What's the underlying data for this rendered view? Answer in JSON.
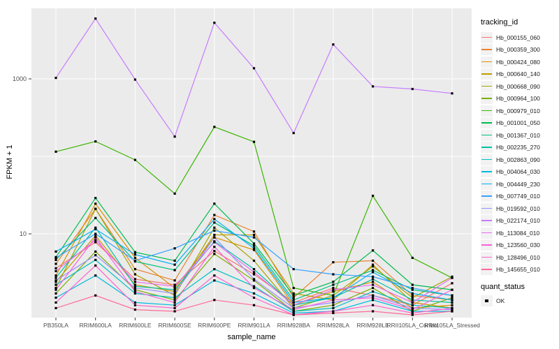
{
  "figure": {
    "background": "#FFFFFF",
    "panel_background": "#EBEBEB",
    "grid_color": "#FFFFFF",
    "tick_color": "#333333",
    "tick_text_color": "#4D4D4D",
    "axis_title_color": "#000000"
  },
  "chart_data": {
    "type": "line",
    "title": "",
    "xlabel": "sample_name",
    "ylabel": "FPKM + 1",
    "y_scale": "log10",
    "ylim": [
      0.85,
      8000
    ],
    "y_tick_labels": [
      "10",
      "1000"
    ],
    "y_tick_values": [
      10,
      1000
    ],
    "y_gridlines": [
      10,
      100,
      1000
    ],
    "grid": true,
    "legend_position": "right",
    "legend_title": "tracking_id",
    "point_marker": "black-dot",
    "quant_legend": {
      "title": "quant_status",
      "items": [
        {
          "label": "OK",
          "marker": "black-square"
        }
      ]
    },
    "categories": [
      "PB350LA",
      "RRIM600LA",
      "RRIM600LE",
      "RRIM600SE",
      "RRIM600PE",
      "RRIM901LA",
      "RRIM928BA",
      "RRIM928LA",
      "RRIM928LE",
      "RRII105LA_Control",
      "RRII105LA_Stressed"
    ],
    "series": [
      {
        "name": "Hb_000155_060",
        "color": "#F8766D",
        "values": [
          3.6,
          7.8,
          2.6,
          2.2,
          6.0,
          3.0,
          1.3,
          2.0,
          1.6,
          1.2,
          2.3
        ]
      },
      {
        "name": "Hb_000359_300",
        "color": "#EA8331",
        "values": [
          4.1,
          21,
          3.5,
          2.5,
          17.5,
          10.7,
          1.5,
          4.3,
          4.5,
          1.6,
          1.4
        ]
      },
      {
        "name": "Hb_000424_080",
        "color": "#D89000",
        "values": [
          2.9,
          24.5,
          4.9,
          2.0,
          9.0,
          6.2,
          1.2,
          1.8,
          2.4,
          1.1,
          1.2
        ]
      },
      {
        "name": "Hb_000640_140",
        "color": "#C09B00",
        "values": [
          2.4,
          9.5,
          2.2,
          1.8,
          9.7,
          9.7,
          1.7,
          1.4,
          4.0,
          1.3,
          1.1
        ]
      },
      {
        "name": "Hb_000668_090",
        "color": "#A3A500",
        "values": [
          2.0,
          21,
          3.0,
          1.6,
          12,
          4.5,
          1.1,
          1.6,
          3.8,
          1.5,
          2.8
        ]
      },
      {
        "name": "Hb_000964_100",
        "color": "#7CAE00",
        "values": [
          1.7,
          5.9,
          1.9,
          1.4,
          5.5,
          2.5,
          1.0,
          1.2,
          2.0,
          1.0,
          1.5
        ]
      },
      {
        "name": "Hb_000979_010",
        "color": "#39B600",
        "values": [
          115,
          156,
          90,
          33,
          240,
          154,
          2.0,
          1.6,
          31,
          4.9,
          2.7
        ]
      },
      {
        "name": "Hb_001001_050",
        "color": "#00BB4E",
        "values": [
          5.0,
          29,
          5.8,
          4.5,
          24.5,
          7.5,
          1.6,
          2.4,
          6.1,
          2.2,
          1.9
        ]
      },
      {
        "name": "Hb_001367_010",
        "color": "#00BF7D",
        "values": [
          4.6,
          16,
          4.4,
          3.4,
          14,
          7.0,
          1.4,
          2.2,
          3.4,
          1.9,
          1.6
        ]
      },
      {
        "name": "Hb_002235_270",
        "color": "#00C1A3",
        "values": [
          2.7,
          12,
          2.1,
          1.9,
          8.0,
          3.5,
          1.2,
          1.5,
          2.6,
          1.4,
          1.3
        ]
      },
      {
        "name": "Hb_002863_090",
        "color": "#00BFC4",
        "values": [
          2.2,
          4.6,
          1.7,
          1.5,
          3.5,
          2.1,
          1.0,
          1.1,
          1.8,
          1.2,
          1.1
        ]
      },
      {
        "name": "Hb_004064_030",
        "color": "#00BADE",
        "values": [
          1.5,
          2.9,
          1.3,
          1.2,
          2.5,
          1.7,
          0.95,
          1.0,
          1.4,
          1.0,
          1.0
        ]
      },
      {
        "name": "Hb_004449_230",
        "color": "#00B0F6",
        "values": [
          5.9,
          11.5,
          5.4,
          4.0,
          15.5,
          6.5,
          1.3,
          1.5,
          3.2,
          1.7,
          1.4
        ]
      },
      {
        "name": "Hb_007749_010",
        "color": "#35A2FF",
        "values": [
          4.9,
          10.0,
          4.5,
          6.5,
          11.0,
          9.0,
          3.5,
          3.0,
          2.8,
          2.0,
          1.6
        ]
      },
      {
        "name": "Hb_019592_010",
        "color": "#9590FF",
        "values": [
          2.5,
          5.3,
          2.0,
          1.7,
          9.0,
          2.6,
          1.1,
          1.3,
          1.6,
          1.1,
          1.05
        ]
      },
      {
        "name": "Hb_022174_010",
        "color": "#C77CFF",
        "values": [
          1030,
          6000,
          980,
          180,
          5300,
          1370,
          200,
          2780,
          800,
          740,
          650
        ]
      },
      {
        "name": "Hb_113084_010",
        "color": "#E76BF3",
        "values": [
          3.3,
          8.3,
          2.4,
          2.1,
          7.8,
          3.2,
          1.2,
          1.9,
          2.2,
          1.3,
          2.7
        ]
      },
      {
        "name": "Hb_123560_030",
        "color": "#FA62DB",
        "values": [
          1.9,
          9.0,
          1.8,
          1.3,
          6.8,
          2.0,
          1.05,
          1.4,
          1.5,
          1.05,
          1.9
        ]
      },
      {
        "name": "Hb_128496_010",
        "color": "#FF61CC",
        "values": [
          1.3,
          3.9,
          1.2,
          1.1,
          2.9,
          1.5,
          0.9,
          1.0,
          1.2,
          0.95,
          1.1
        ]
      },
      {
        "name": "Hb_145655_010",
        "color": "#FF6A98",
        "values": [
          1.1,
          1.6,
          1.05,
          1.0,
          1.4,
          1.2,
          0.9,
          0.95,
          1.0,
          0.9,
          1.0
        ]
      }
    ]
  }
}
